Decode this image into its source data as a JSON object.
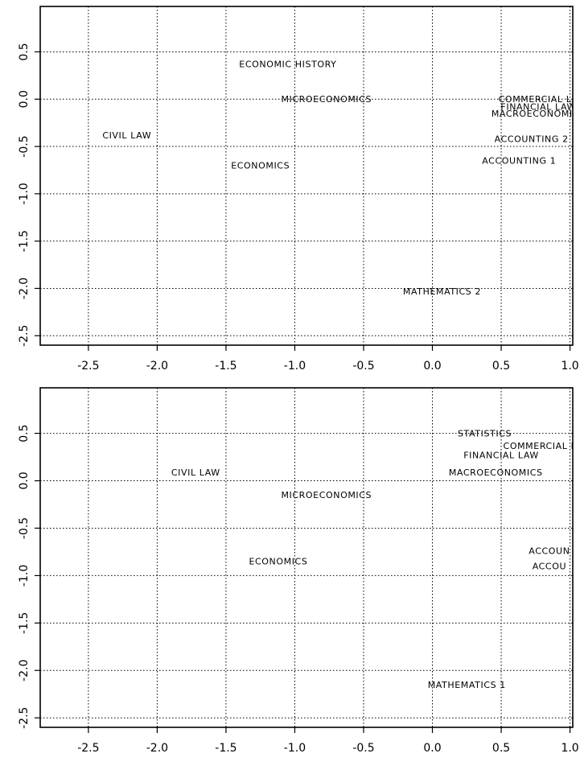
{
  "chart_data": [
    {
      "type": "scatter",
      "title": "",
      "xlabel": "",
      "ylabel": "",
      "xlim": [
        -2.85,
        1.02
      ],
      "ylim": [
        -2.6,
        0.98
      ],
      "grid": true,
      "x_ticks": [
        -2.5,
        -2.0,
        -1.5,
        -1.0,
        -0.5,
        0.0,
        0.5,
        1.0
      ],
      "x_tick_labels": [
        "-2.5",
        "-2.0",
        "-1.5",
        "-1.0",
        "-0.5",
        "0.0",
        "0.5",
        "1.0"
      ],
      "y_ticks": [
        -2.5,
        -2.0,
        -1.5,
        -1.0,
        -0.5,
        0.0,
        0.5
      ],
      "y_tick_labels": [
        "-2.5",
        "-2.0",
        "-1.5",
        "-1.0",
        "-0.5",
        "0.0",
        "0.5"
      ],
      "points": [
        {
          "label": "ECONOMIC HISTORY",
          "x": -1.05,
          "y": 0.37
        },
        {
          "label": "MICROECONOMICS",
          "x": -0.77,
          "y": 0.0
        },
        {
          "label": "CIVIL LAW",
          "x": -2.22,
          "y": -0.38
        },
        {
          "label": "ECONOMICS",
          "x": -1.25,
          "y": -0.7
        },
        {
          "label": "COMMERCIAL LA",
          "x": 0.77,
          "y": 0.0
        },
        {
          "label": "FINANCIAL LAW",
          "x": 0.77,
          "y": -0.08
        },
        {
          "label": "MACROECONOMICS",
          "x": 0.77,
          "y": -0.15
        },
        {
          "label": "ACCOUNTING 2",
          "x": 0.72,
          "y": -0.42
        },
        {
          "label": "ACCOUNTING 1",
          "x": 0.63,
          "y": -0.65
        },
        {
          "label": "MATHEMATICS 2",
          "x": 0.07,
          "y": -2.03
        }
      ]
    },
    {
      "type": "scatter",
      "title": "",
      "xlabel": "",
      "ylabel": "",
      "xlim": [
        -2.85,
        1.02
      ],
      "ylim": [
        -2.6,
        0.98
      ],
      "grid": true,
      "x_ticks": [
        -2.5,
        -2.0,
        -1.5,
        -1.0,
        -0.5,
        0.0,
        0.5,
        1.0
      ],
      "x_tick_labels": [
        "-2.5",
        "-2.0",
        "-1.5",
        "-1.0",
        "-0.5",
        "0.0",
        "0.5",
        "1.0"
      ],
      "y_ticks": [
        -2.5,
        -2.0,
        -1.5,
        -1.0,
        -0.5,
        0.0,
        0.5
      ],
      "y_tick_labels": [
        "-2.5",
        "-2.0",
        "-1.5",
        "-1.0",
        "-0.5",
        "0.0",
        "0.5"
      ],
      "points": [
        {
          "label": "STATISTICS",
          "x": 0.38,
          "y": 0.5
        },
        {
          "label": "COMMERCIAL L",
          "x": 0.78,
          "y": 0.37
        },
        {
          "label": "FINANCIAL LAW",
          "x": 0.5,
          "y": 0.27
        },
        {
          "label": "MACROECONOMICS",
          "x": 0.46,
          "y": 0.09
        },
        {
          "label": "CIVIL LAW",
          "x": -1.72,
          "y": 0.09
        },
        {
          "label": "MICROECONOMICS",
          "x": -0.77,
          "y": -0.15
        },
        {
          "label": "ECONOMICS",
          "x": -1.12,
          "y": -0.85
        },
        {
          "label": "ACCOUN",
          "x": 0.85,
          "y": -0.74
        },
        {
          "label": "ACCOU",
          "x": 0.85,
          "y": -0.9
        },
        {
          "label": "MATHEMATICS 1",
          "x": 0.25,
          "y": -2.15
        }
      ]
    }
  ]
}
